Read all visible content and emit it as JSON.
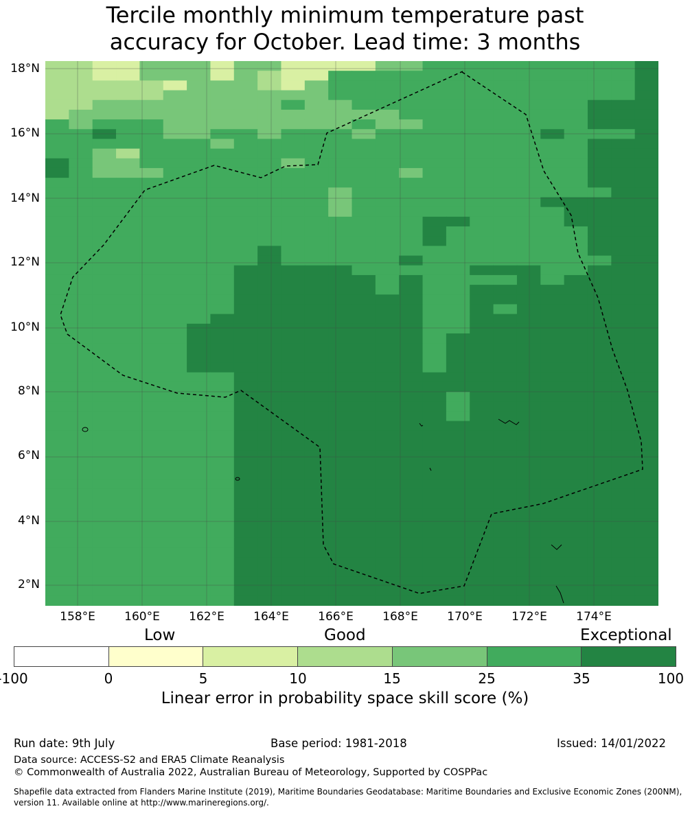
{
  "title_line1": "Tercile monthly minimum temperature past",
  "title_line2": "accuracy for October. Lead time: 3 months",
  "map": {
    "lat_labels": [
      "18°N",
      "16°N",
      "14°N",
      "12°N",
      "10°N",
      "8°N",
      "6°N",
      "4°N",
      "2°N"
    ],
    "lon_labels": [
      "158°E",
      "160°E",
      "162°E",
      "164°E",
      "166°E",
      "168°E",
      "170°E",
      "172°E",
      "174°E"
    ],
    "grid_note": "cell classes: 2 = 5-10, 3 = 10-15, 4 = 15-25, 5 = 25-35, 6 = 35-100",
    "grid": [
      "33224442442222445555555556",
      "33224442432255555555555556",
      "33333244432455555555555556",
      "33333444444455555555555556",
      "33444444445445555555555666",
      "34444444444444455555555666",
      "54555444444445445555555666",
      "55655445545554555555565556",
      "55555554555555555555555666",
      "55435555555555555555555666",
      "65445555554555555555555666",
      "65444555555555545555555666",
      "55555555555555555555555666",
      "55555555555545555555555566",
      "55555555555545555555566666",
      "55555555555545555555556666",
      "55555555555555556655556666",
      "55555555555555556555555666",
      "55555555555555556555555666",
      "55555555565555555555555666",
      "55555555565555565555555566",
      "55555555666665555566655666",
      "55555555666666565555656666",
      "55555555666666565566666666",
      "55555555666666665566666666",
      "55555555666666665565666666",
      "55555556666666665566666666",
      "55555566666666665566666666",
      "55555566666666665666666666",
      "55555566666666665666666666",
      "55555566666666665666666666",
      "55555566666666665666666666",
      "55555555666666666666666666",
      "55555555666666666666666666",
      "55555555666666666566666666",
      "55555555666666666566666666",
      "55555555666666666566666666",
      "55555555666666666666666666",
      "55555555666666666666666666",
      "55555555666666666666666666",
      "55555555666666666666666666",
      "55555555666666666666666666",
      "55555555666666666666666666",
      "55555555666666666666666666",
      "55555555666666666666666666",
      "55555555666666666666666666",
      "55555555666666666666666666",
      "55555555666666666666666666",
      "55555555666666666666666666",
      "55555555666666666666666666",
      "55555555666666666666666666",
      "55555555666666666666666666",
      "55555555666666666666666666",
      "55555555666666666666666666",
      "55555555666666666666666666",
      "55555555666666666666666666"
    ]
  },
  "colorbar": {
    "categories": [
      "Low",
      "Good",
      "Exceptional"
    ],
    "ticks": [
      "-100",
      "0",
      "5",
      "10",
      "15",
      "25",
      "35",
      "100"
    ],
    "colors": [
      "#ffffff",
      "#ffffcc",
      "#d9f0a3",
      "#addd8e",
      "#78c679",
      "#41ab5d",
      "#238443"
    ],
    "label": "Linear error in probability space skill score (%)"
  },
  "footer": {
    "run_date": "Run date: 9th July",
    "base_period": "Base period: 1981-2018",
    "issued": "Issued: 14/01/2022",
    "data_source": "Data source: ACCESS-S2 and ERA5 Climate Reanalysis",
    "copyright": "© Commonwealth of Australia 2022, Australian Bureau of Meteorology, Supported by COSPPac",
    "shapefile_line1": "Shapefile data extracted from Flanders Marine Institute (2019), Maritime Boundaries Geodatabase: Maritime Boundaries and Exclusive Economic Zones (200NM),",
    "shapefile_line2": "version 11. Available online at http://www.marineregions.org/."
  }
}
